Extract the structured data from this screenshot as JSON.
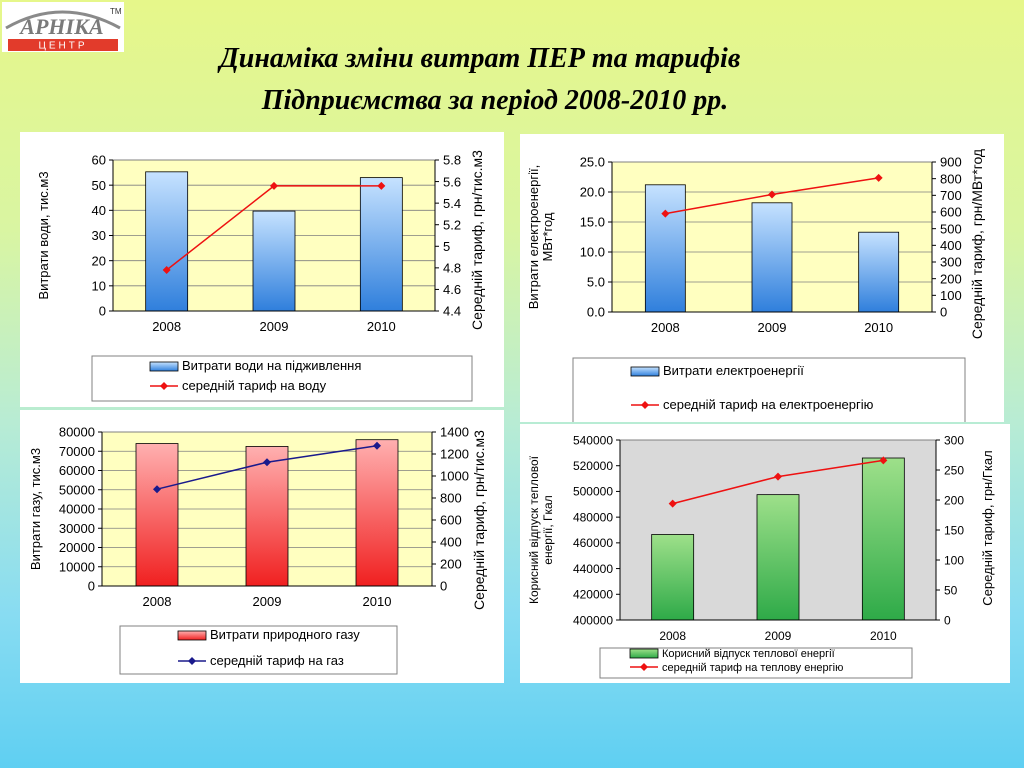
{
  "slide": {
    "title_line1": "Динаміка зміни витрат ПЕР та тарифів",
    "title_line2": "Підприємства за період  2008-2010 рр."
  },
  "logo": {
    "text": "АРНІКА",
    "subtext": "ЦЕНТР",
    "tm": "ТМ"
  },
  "colors": {
    "plot_yellow": "#ffffc0",
    "plot_grey": "#d9d9d9",
    "bar_blue": "#2f7fdc",
    "bar_red": "#f02020",
    "bar_green": "#2eaa48",
    "line_red": "#ee1111",
    "line_navy": "#1a1a8c"
  },
  "chart_data": [
    {
      "type": "bar",
      "panel": "water",
      "categories": [
        "2008",
        "2009",
        "2010"
      ],
      "series": [
        {
          "name": "Витрати води на підживлення",
          "kind": "bar",
          "axis": "left",
          "values": [
            55.3,
            39.7,
            53.0
          ]
        },
        {
          "name": "середній тариф на воду",
          "kind": "line",
          "axis": "right",
          "values": [
            4.78,
            5.56,
            5.56
          ]
        }
      ],
      "ylabel": "Витрати води, тис.м3",
      "y2label": "Середній тариф, грн/тис.м3",
      "ylim": [
        0,
        60
      ],
      "yticks": [
        "0",
        "10",
        "20",
        "30",
        "40",
        "50",
        "60"
      ],
      "y2lim": [
        4.4,
        5.8
      ],
      "y2ticks": [
        "4.4",
        "4.6",
        "4.8",
        "5",
        "5.2",
        "5.4",
        "5.6",
        "5.8"
      ],
      "grid": true,
      "legend": "bottom"
    },
    {
      "type": "bar",
      "panel": "electricity",
      "categories": [
        "2008",
        "2009",
        "2010"
      ],
      "series": [
        {
          "name": "Витрати електроенергії",
          "kind": "bar",
          "axis": "left",
          "values": [
            21.2,
            18.2,
            13.3
          ]
        },
        {
          "name": "середній тариф на електроенергію",
          "kind": "line",
          "axis": "right",
          "values": [
            590,
            705,
            805
          ]
        }
      ],
      "ylabel": "Витрати електроенергії, МВт*год",
      "y2label": "Середній тариф, грн/МВт*год",
      "ylim": [
        0,
        25
      ],
      "yticks": [
        "0.0",
        "5.0",
        "10.0",
        "15.0",
        "20.0",
        "25.0"
      ],
      "y2lim": [
        0,
        900
      ],
      "y2ticks": [
        "0",
        "100",
        "200",
        "300",
        "400",
        "500",
        "600",
        "700",
        "800",
        "900"
      ],
      "grid": true,
      "legend": "bottom"
    },
    {
      "type": "bar",
      "panel": "gas",
      "categories": [
        "2008",
        "2009",
        "2010"
      ],
      "series": [
        {
          "name": "Витрати природного газу",
          "kind": "bar",
          "axis": "left",
          "values": [
            74000,
            72500,
            76000
          ]
        },
        {
          "name": "середній тариф на газ",
          "kind": "line",
          "axis": "right",
          "values": [
            880,
            1125,
            1275
          ]
        }
      ],
      "ylabel": "Витрати газу, тис.м3",
      "y2label": "Середній тариф, грн/тис.м3",
      "ylim": [
        0,
        80000
      ],
      "yticks": [
        "0",
        "10000",
        "20000",
        "30000",
        "40000",
        "50000",
        "60000",
        "70000",
        "80000"
      ],
      "y2lim": [
        0,
        1400
      ],
      "y2ticks": [
        "0",
        "200",
        "400",
        "600",
        "800",
        "1000",
        "1200",
        "1400"
      ],
      "grid": true,
      "legend": "bottom"
    },
    {
      "type": "bar",
      "panel": "heat",
      "categories": [
        "2008",
        "2009",
        "2010"
      ],
      "series": [
        {
          "name": "Корисний відпуск теплової енергії",
          "kind": "bar",
          "axis": "left",
          "values": [
            466500,
            497500,
            526000
          ]
        },
        {
          "name": "середній тариф на теплову енергію",
          "kind": "line",
          "axis": "right",
          "values": [
            194,
            239,
            266
          ]
        }
      ],
      "ylabel": "Корисний відпуск теплової енергії, Гкал",
      "y2label": "Середній тариф, грн/Гкал",
      "ylim": [
        400000,
        540000
      ],
      "yticks": [
        "400000",
        "420000",
        "440000",
        "460000",
        "480000",
        "500000",
        "520000",
        "540000"
      ],
      "y2lim": [
        0,
        300
      ],
      "y2ticks": [
        "0",
        "50",
        "100",
        "150",
        "200",
        "250",
        "300"
      ],
      "grid": false,
      "legend": "bottom"
    }
  ]
}
